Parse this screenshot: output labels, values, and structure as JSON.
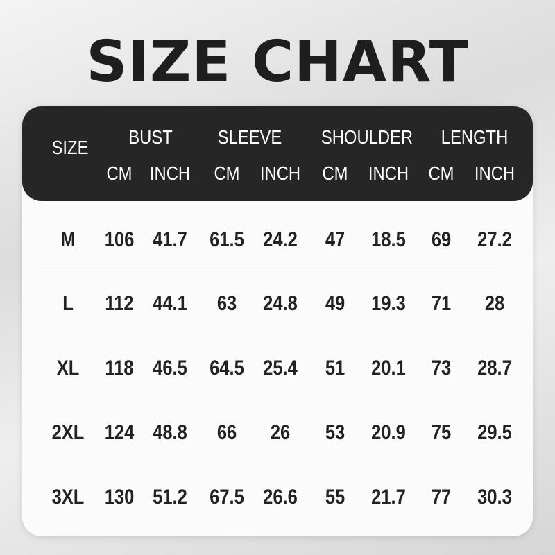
{
  "title": "SIZE CHART",
  "header": {
    "size_label": "SIZE",
    "groups": [
      "BUST",
      "SLEEVE",
      "SHOULDER",
      "LENGTH"
    ],
    "units": [
      "CM",
      "INCH",
      "CM",
      "INCH",
      "CM",
      "INCH",
      "CM",
      "INCH"
    ]
  },
  "rows": [
    {
      "size": "M",
      "values": [
        "106",
        "41.7",
        "61.5",
        "24.2",
        "47",
        "18.5",
        "69",
        "27.2"
      ]
    },
    {
      "size": "L",
      "values": [
        "112",
        "44.1",
        "63",
        "24.8",
        "49",
        "19.3",
        "71",
        "28"
      ]
    },
    {
      "size": "XL",
      "values": [
        "118",
        "46.5",
        "64.5",
        "25.4",
        "51",
        "20.1",
        "73",
        "28.7"
      ]
    },
    {
      "size": "2XL",
      "values": [
        "124",
        "48.8",
        "66",
        "26",
        "53",
        "20.9",
        "75",
        "29.5"
      ]
    },
    {
      "size": "3XL",
      "values": [
        "130",
        "51.2",
        "67.5",
        "26.6",
        "55",
        "21.7",
        "77",
        "30.3"
      ]
    }
  ]
}
